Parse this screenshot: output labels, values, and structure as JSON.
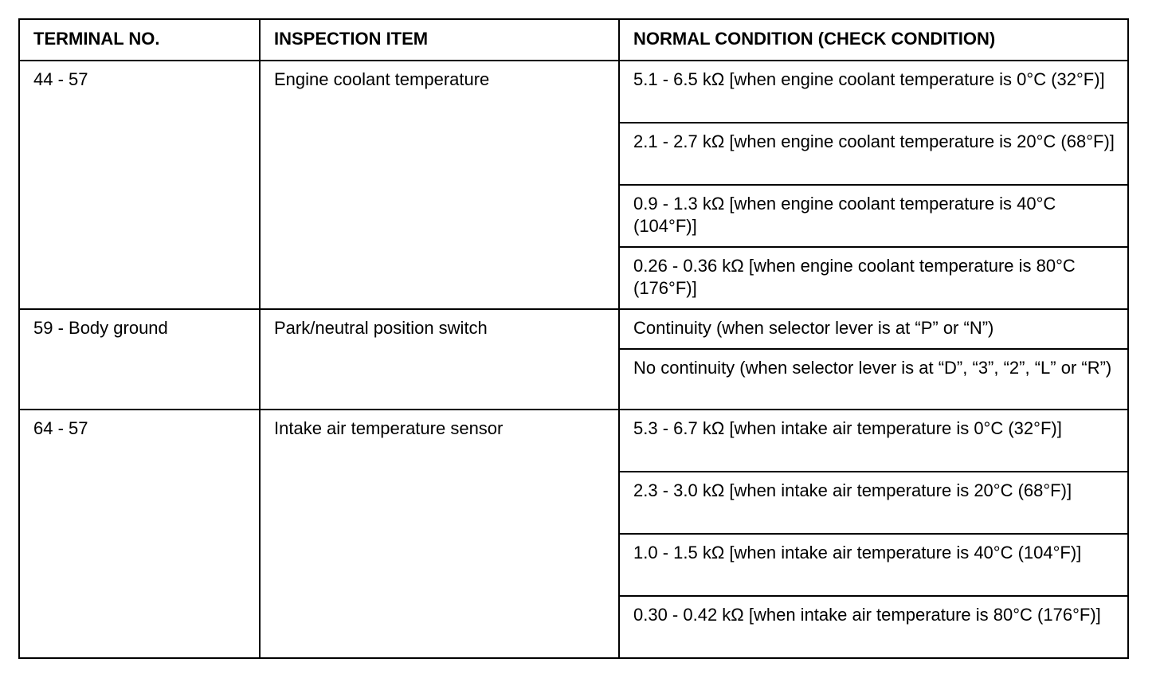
{
  "headers": [
    "TERMINAL NO.",
    "INSPECTION ITEM",
    "NORMAL CONDITION (CHECK CONDITION)"
  ],
  "groups": [
    {
      "terminal": "44 - 57",
      "item": "Engine coolant temperature",
      "conditions": [
        "5.1 - 6.5 kΩ [when engine coolant temperature is 0°C (32°F)]",
        "2.1 - 2.7 kΩ [when engine coolant temperature is 20°C (68°F)]",
        "0.9 - 1.3 kΩ [when engine coolant temperature is 40°C (104°F)]",
        "0.26 - 0.36 kΩ [when engine coolant temperature is 80°C (176°F)]"
      ]
    },
    {
      "terminal": "59 - Body ground",
      "item": "Park/neutral position switch",
      "conditions": [
        "Continuity (when selector lever is at “P” or “N”)",
        "No continuity (when selector lever is at “D”, “3”, “2”, “L” or “R”)"
      ]
    },
    {
      "terminal": "64 - 57",
      "item": "Intake air temperature sensor",
      "conditions": [
        "5.3 - 6.7 kΩ [when intake air temperature is 0°C (32°F)]",
        "2.3 - 3.0 kΩ [when intake air temperature is 20°C (68°F)]",
        "1.0 - 1.5 kΩ [when intake air temperature is 40°C (104°F)]",
        "0.30 - 0.42 kΩ [when intake air temperature is 80°C (176°F)]"
      ]
    }
  ]
}
